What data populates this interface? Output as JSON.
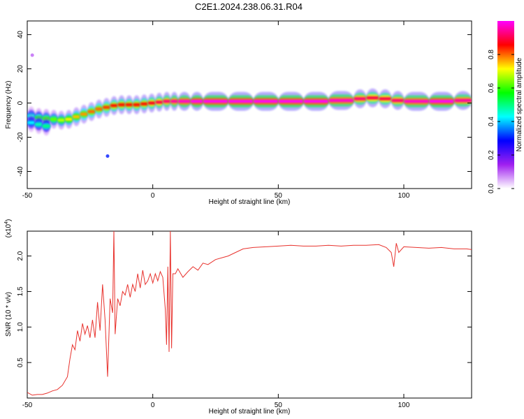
{
  "title": "C2E1.2024.238.06.31.R04",
  "chart_data": [
    {
      "type": "heatmap",
      "xlabel": "Height of straight line (km)",
      "ylabel": "Frequency (Hz)",
      "xlim": [
        -50,
        127
      ],
      "ylim": [
        -50,
        48
      ],
      "x_ticks": [
        -50,
        0,
        50,
        100
      ],
      "y_ticks": [
        -40,
        -20,
        0,
        20,
        40
      ],
      "colorbar": {
        "label": "Normalized spectral amplitude",
        "range": [
          0,
          1
        ],
        "ticks": [
          "0.0",
          "0.2",
          "0.4",
          "0.6",
          "0.8"
        ],
        "colors": [
          "#ffffff",
          "#a020f0",
          "#0000ff",
          "#00ffff",
          "#00ff00",
          "#ffff00",
          "#ff0000",
          "#ff00ff"
        ]
      },
      "ridge": {
        "x": [
          -50,
          -47,
          -44,
          -41,
          -38,
          -35,
          -32,
          -29,
          -26,
          -23,
          -20,
          -17,
          -14,
          -11,
          -8,
          -5,
          -2,
          1,
          4,
          7,
          10,
          15,
          20,
          30,
          40,
          50,
          60,
          70,
          80,
          85,
          90,
          95,
          100,
          110,
          120,
          127
        ],
        "y": [
          -7,
          -8,
          -9,
          -9,
          -10,
          -10,
          -9,
          -7,
          -6,
          -4,
          -3,
          -2,
          -1,
          -1,
          -1,
          -1,
          0,
          0,
          1,
          1,
          1,
          1,
          1,
          1,
          1,
          1,
          1,
          1,
          2,
          3,
          3,
          2,
          1,
          1,
          1,
          2
        ],
        "amplitude": [
          0.4,
          0.5,
          0.6,
          0.6,
          0.65,
          0.7,
          0.75,
          0.75,
          0.8,
          0.8,
          0.8,
          0.85,
          0.85,
          0.85,
          0.85,
          0.85,
          0.85,
          0.9,
          0.9,
          0.95,
          0.95,
          1,
          1,
          1,
          1,
          1,
          1,
          1,
          0.95,
          0.9,
          0.9,
          0.9,
          0.95,
          1,
          1,
          0.9
        ]
      },
      "secondary_branch": {
        "x": [
          -50,
          -47,
          -44,
          -41
        ],
        "y": [
          -11,
          -12,
          -13,
          -14
        ],
        "amplitude": [
          0.4,
          0.45,
          0.5,
          0.5
        ]
      },
      "isolated_points": [
        {
          "x": -48,
          "y": 28,
          "amplitude": 0.1
        },
        {
          "x": -18,
          "y": -31,
          "amplitude": 0.3
        }
      ]
    },
    {
      "type": "line",
      "xlabel": "Height of straight line (km)",
      "ylabel": "SNR (10 * v/v)",
      "y_scale_label": "(x10",
      "y_scale_exponent": "4",
      "y_scale_suffix": ")",
      "xlim": [
        -50,
        127
      ],
      "ylim": [
        0,
        2.35
      ],
      "x_ticks": [
        -50,
        0,
        50,
        100
      ],
      "y_ticks": [
        0.5,
        1.0,
        1.5,
        2.0
      ],
      "y_tick_labels": [
        "0.5",
        "1.0",
        "1.5",
        "2.0"
      ],
      "color": "#e8322d",
      "series": [
        {
          "x": [
            -50,
            -48,
            -46,
            -44,
            -42,
            -40,
            -38,
            -36,
            -34,
            -33,
            -32,
            -31,
            -30,
            -29,
            -28,
            -27,
            -26,
            -25,
            -24,
            -23,
            -22,
            -21,
            -20,
            -19,
            -18,
            -17,
            -16,
            -15.5,
            -15,
            -14,
            -13,
            -12,
            -11,
            -10,
            -9,
            -8,
            -7,
            -6,
            -5,
            -4,
            -3,
            -2,
            -1,
            0,
            1,
            2,
            3,
            4,
            5,
            5.5,
            6,
            6.5,
            7,
            7.5,
            8,
            9,
            10,
            12,
            14,
            16,
            18,
            20,
            22,
            25,
            28,
            30,
            33,
            36,
            40,
            45,
            50,
            55,
            60,
            65,
            70,
            75,
            80,
            85,
            90,
            93,
            95,
            96,
            97,
            98,
            100,
            105,
            110,
            115,
            120,
            125,
            127
          ],
          "y": [
            0.08,
            0.04,
            0.05,
            0.05,
            0.07,
            0.1,
            0.12,
            0.18,
            0.3,
            0.55,
            0.75,
            0.68,
            0.95,
            0.8,
            1.05,
            0.9,
            1.02,
            0.85,
            1.1,
            0.85,
            1.35,
            0.95,
            1.6,
            1.1,
            0.3,
            1.4,
            1.2,
            2.35,
            0.9,
            1.4,
            1.3,
            1.5,
            1.45,
            1.6,
            1.42,
            1.6,
            1.5,
            1.75,
            1.55,
            1.8,
            1.6,
            1.65,
            1.75,
            1.62,
            1.75,
            1.65,
            1.78,
            1.7,
            1.25,
            0.75,
            1.85,
            0.65,
            2.35,
            0.7,
            1.75,
            1.75,
            1.82,
            1.7,
            1.78,
            1.85,
            1.8,
            1.9,
            1.88,
            1.95,
            1.98,
            2.0,
            2.05,
            2.1,
            2.12,
            2.13,
            2.14,
            2.15,
            2.14,
            2.14,
            2.15,
            2.14,
            2.15,
            2.15,
            2.16,
            2.12,
            2.05,
            1.85,
            2.18,
            2.05,
            2.13,
            2.12,
            2.11,
            2.12,
            2.1,
            2.1,
            2.09
          ]
        }
      ]
    }
  ]
}
